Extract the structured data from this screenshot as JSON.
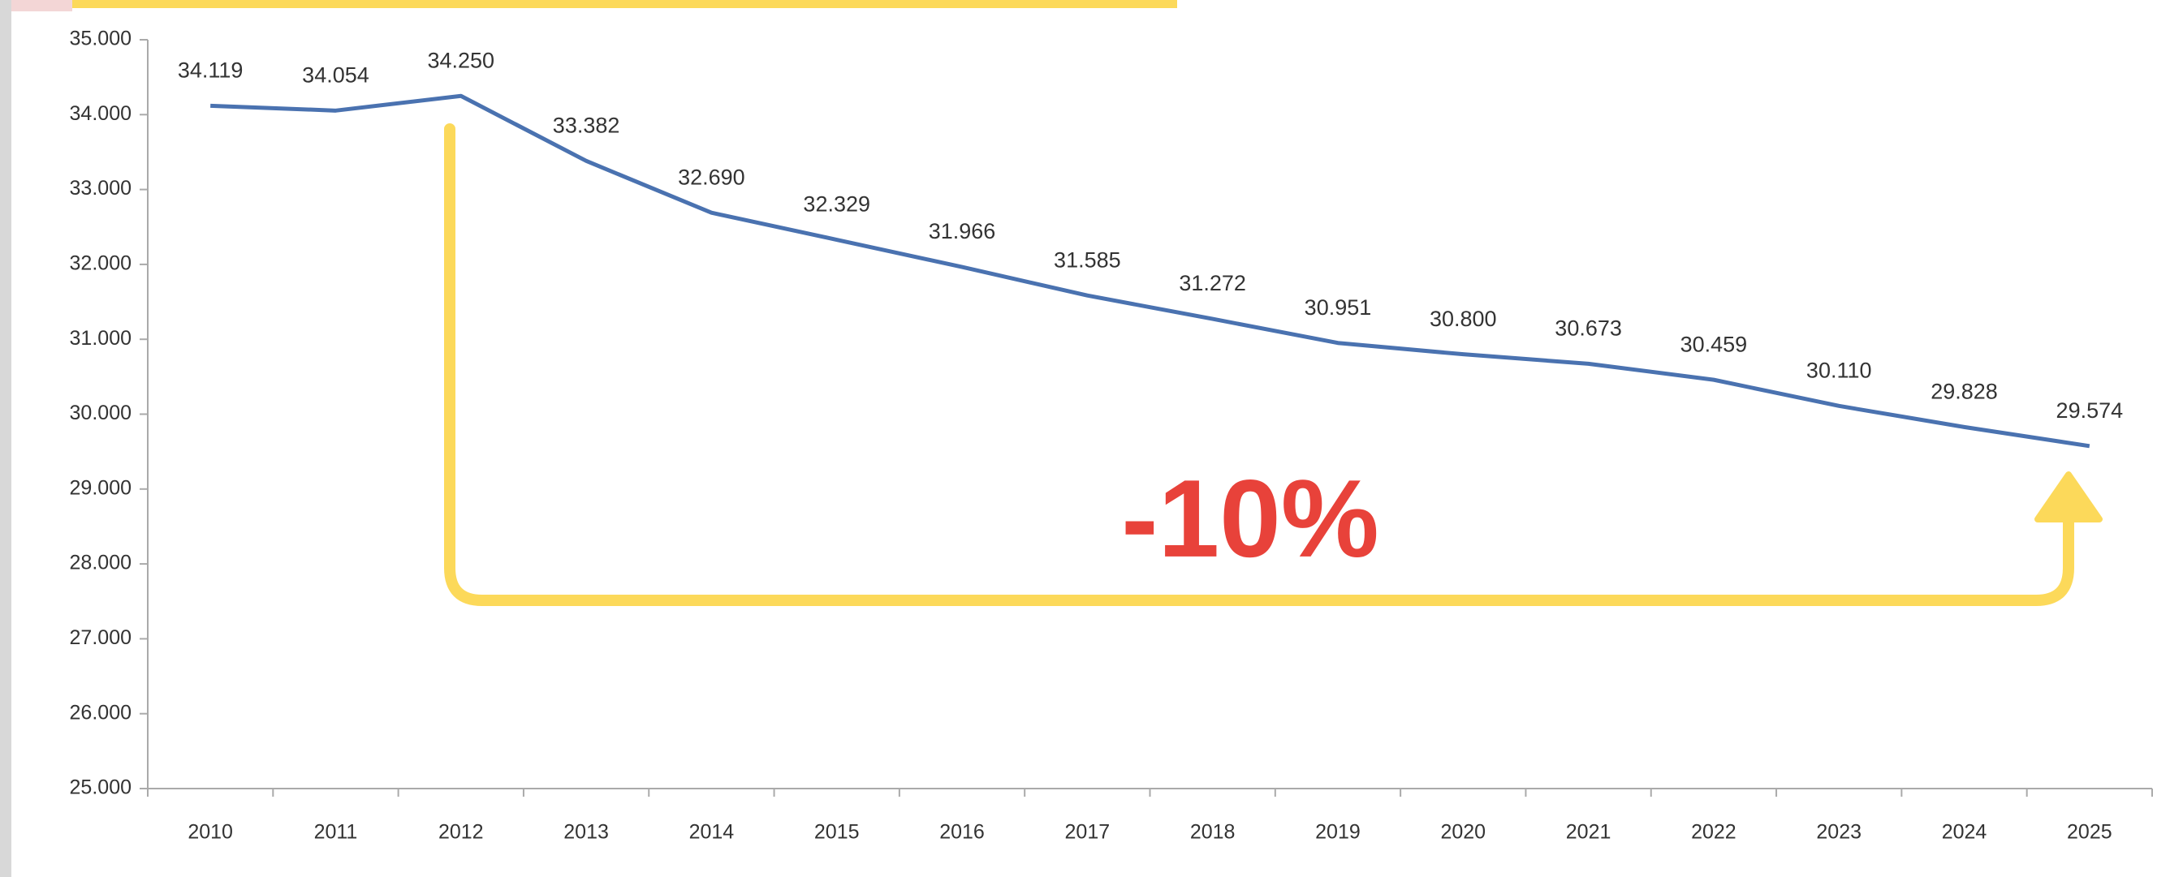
{
  "chart_data": {
    "type": "line",
    "categories": [
      "2010",
      "2011",
      "2012",
      "2013",
      "2014",
      "2015",
      "2016",
      "2017",
      "2018",
      "2019",
      "2020",
      "2021",
      "2022",
      "2023",
      "2024",
      "2025"
    ],
    "values": [
      34119,
      34054,
      34250,
      33382,
      32690,
      32329,
      31966,
      31585,
      31272,
      30951,
      30800,
      30673,
      30459,
      30110,
      29828,
      29574
    ],
    "value_labels": [
      "34.119",
      "34.054",
      "34.250",
      "33.382",
      "32.690",
      "32.329",
      "31.966",
      "31.585",
      "31.272",
      "30.951",
      "30.800",
      "30.673",
      "30.459",
      "30.110",
      "29.828",
      "29.574"
    ],
    "color": "#4a72b0",
    "ylim": [
      25000,
      35000
    ],
    "yticks": [
      {
        "value": 25000,
        "label": "25.000"
      },
      {
        "value": 26000,
        "label": "26.000"
      },
      {
        "value": 27000,
        "label": "27.000"
      },
      {
        "value": 28000,
        "label": "28.000"
      },
      {
        "value": 29000,
        "label": "29.000"
      },
      {
        "value": 30000,
        "label": "30.000"
      },
      {
        "value": 31000,
        "label": "31.000"
      },
      {
        "value": 32000,
        "label": "32.000"
      },
      {
        "value": 33000,
        "label": "33.000"
      },
      {
        "value": 34000,
        "label": "34.000"
      },
      {
        "value": 35000,
        "label": "35.000"
      }
    ],
    "grid": false,
    "annotation": "-10%"
  }
}
